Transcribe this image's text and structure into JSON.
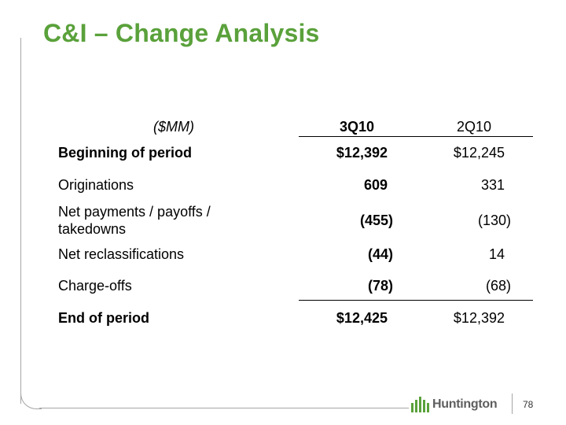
{
  "slide": {
    "title": "C&I – Change Analysis",
    "page_number": "78",
    "logo_text": "Huntington"
  },
  "table": {
    "units": "($MM)",
    "col1_header": "3Q10",
    "col2_header": "2Q10",
    "rows": [
      {
        "label": "Beginning of period",
        "c1": "$12,392",
        "c2": "$12,245"
      },
      {
        "label": "Originations",
        "c1": "609",
        "c2": "331"
      },
      {
        "label_line1": "Net payments / payoffs /",
        "label_line2": "takedowns",
        "c1": "(455)",
        "c2": "(130)"
      },
      {
        "label": "Net reclassifications",
        "c1": "(44)",
        "c2": "14"
      },
      {
        "label": "Charge-offs",
        "c1": "(78)",
        "c2": "(68)"
      },
      {
        "label": "End of period",
        "c1": "$12,425",
        "c2": "$12,392"
      }
    ]
  },
  "colors": {
    "accent": "#5aa13b",
    "frame": "#a6a6a6"
  }
}
